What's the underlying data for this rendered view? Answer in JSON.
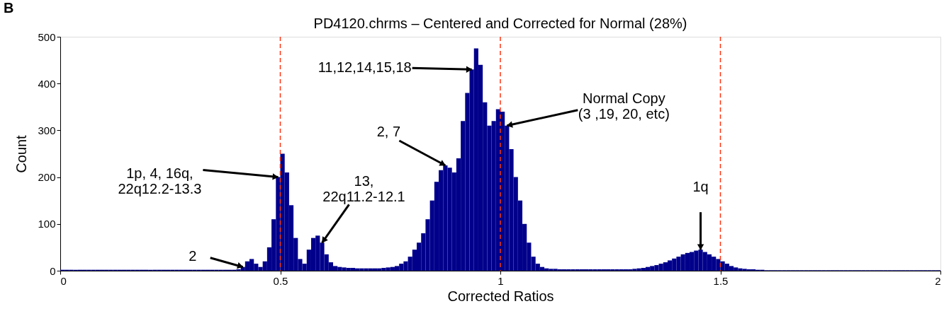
{
  "chart_data": {
    "type": "histogram",
    "title": "PD4120.chrms – Centered and Corrected for Normal (28%)",
    "xlabel": "Corrected Ratios",
    "ylabel": "Count",
    "color": "#00008b",
    "bins": [
      0,
      0.01,
      0.02,
      0.03,
      0.04,
      0.05,
      0.06,
      0.07,
      0.08,
      0.09,
      0.1,
      0.11,
      0.12,
      0.13,
      0.14,
      0.15,
      0.16,
      0.17,
      0.18,
      0.19,
      0.2,
      0.21,
      0.22,
      0.23,
      0.24,
      0.25,
      0.26,
      0.27,
      0.28,
      0.29,
      0.3,
      0.31,
      0.32,
      0.33,
      0.34,
      0.35,
      0.36,
      0.37,
      0.38,
      0.39,
      0.4,
      0.41,
      0.42,
      0.43,
      0.44,
      0.45,
      0.46,
      0.47,
      0.48,
      0.49,
      0.5,
      0.51,
      0.52,
      0.53,
      0.54,
      0.55,
      0.56,
      0.57,
      0.58,
      0.59,
      0.6,
      0.61,
      0.62,
      0.63,
      0.64,
      0.65,
      0.66,
      0.67,
      0.68,
      0.69,
      0.7,
      0.71,
      0.72,
      0.73,
      0.74,
      0.75,
      0.76,
      0.77,
      0.78,
      0.79,
      0.8,
      0.81,
      0.82,
      0.83,
      0.84,
      0.85,
      0.86,
      0.87,
      0.88,
      0.89,
      0.9,
      0.91,
      0.92,
      0.93,
      0.94,
      0.95,
      0.96,
      0.97,
      0.98,
      0.99,
      1,
      1.01,
      1.02,
      1.03,
      1.04,
      1.05,
      1.06,
      1.07,
      1.08,
      1.09,
      1.1,
      1.11,
      1.12,
      1.13,
      1.14,
      1.15,
      1.16,
      1.17,
      1.18,
      1.19,
      1.2,
      1.21,
      1.22,
      1.23,
      1.24,
      1.25,
      1.26,
      1.27,
      1.28,
      1.29,
      1.3,
      1.31,
      1.32,
      1.33,
      1.34,
      1.35,
      1.36,
      1.37,
      1.38,
      1.39,
      1.4,
      1.41,
      1.42,
      1.43,
      1.44,
      1.45,
      1.46,
      1.47,
      1.48,
      1.49,
      1.5,
      1.51,
      1.52,
      1.53,
      1.54,
      1.55,
      1.56,
      1.57,
      1.58,
      1.59,
      1.6,
      1.61,
      1.62,
      1.63,
      1.64,
      1.65,
      1.66,
      1.67,
      1.68,
      1.69,
      1.7,
      1.71,
      1.72,
      1.73,
      1.74,
      1.75,
      1.76,
      1.77,
      1.78,
      1.79,
      1.8,
      1.81,
      1.82,
      1.83,
      1.84,
      1.85,
      1.86,
      1.87,
      1.88,
      1.89,
      1.9,
      1.91,
      1.92,
      1.93,
      1.94,
      1.95,
      1.96,
      1.97,
      1.98,
      1.99,
      2
    ],
    "values": [
      2,
      2,
      2,
      2,
      2,
      2,
      2,
      2,
      2,
      2,
      2,
      2,
      2,
      2,
      2,
      2,
      2,
      2,
      2,
      2,
      2,
      2,
      2,
      2,
      2,
      2,
      2,
      2,
      2,
      2,
      2,
      2,
      2,
      2,
      2,
      2,
      2,
      2,
      2,
      2,
      3,
      8,
      20,
      25,
      15,
      8,
      20,
      50,
      110,
      200,
      250,
      210,
      140,
      70,
      25,
      15,
      45,
      70,
      75,
      60,
      35,
      18,
      10,
      8,
      7,
      6,
      6,
      5,
      5,
      5,
      5,
      5,
      5,
      6,
      7,
      8,
      10,
      15,
      20,
      30,
      45,
      60,
      80,
      110,
      150,
      190,
      215,
      225,
      220,
      210,
      240,
      320,
      380,
      430,
      475,
      440,
      360,
      310,
      320,
      345,
      340,
      310,
      260,
      200,
      150,
      100,
      60,
      30,
      15,
      8,
      5,
      4,
      4,
      3,
      3,
      3,
      3,
      3,
      3,
      3,
      3,
      3,
      3,
      3,
      3,
      3,
      3,
      3,
      3,
      3,
      4,
      5,
      6,
      8,
      10,
      12,
      15,
      18,
      22,
      26,
      30,
      35,
      38,
      40,
      43,
      45,
      40,
      35,
      30,
      25,
      20,
      15,
      10,
      7,
      5,
      4,
      3,
      3,
      2,
      2,
      1,
      1,
      1,
      1,
      1,
      1,
      1,
      1,
      1,
      1,
      1,
      1,
      1,
      1,
      1,
      1,
      1,
      1,
      1,
      1,
      1,
      1,
      1,
      1,
      1,
      1,
      1,
      1,
      1,
      1,
      1,
      1,
      1,
      1,
      1,
      1,
      1,
      1,
      1,
      1
    ],
    "xlim": [
      0,
      2
    ],
    "xticks": [
      0,
      0.5,
      1,
      1.5,
      2
    ],
    "ylim": [
      0,
      500
    ],
    "yticks": [
      0,
      100,
      200,
      300,
      400,
      500
    ],
    "grid": false,
    "ref_lines": [
      {
        "axis": "x",
        "value": 0.5,
        "color": "#ff3311",
        "line_style": "dashed"
      },
      {
        "axis": "x",
        "value": 1,
        "color": "#ff3311",
        "line_style": "dashed"
      },
      {
        "axis": "x",
        "value": 1.5,
        "color": "#ff3311",
        "line_style": "dashed"
      }
    ],
    "annotations": [
      "B",
      {
        "text": "1p, 4, 16q,\n22q12.2-13.3",
        "x": 0.495,
        "y": 200
      },
      {
        "text": "2",
        "x": 0.415,
        "y": 8
      },
      {
        "text": "13,\n22q11.2-12.1",
        "x": 0.595,
        "y": 60
      },
      {
        "text": "2, 7",
        "x": 0.875,
        "y": 225
      },
      {
        "text": "11,12,14,15,18",
        "x": 0.935,
        "y": 430
      },
      {
        "text": "Normal Copy\n(3 ,19, 20, etc)",
        "x": 1.015,
        "y": 310
      },
      {
        "text": "1q",
        "x": 1.455,
        "y": 45
      }
    ]
  }
}
